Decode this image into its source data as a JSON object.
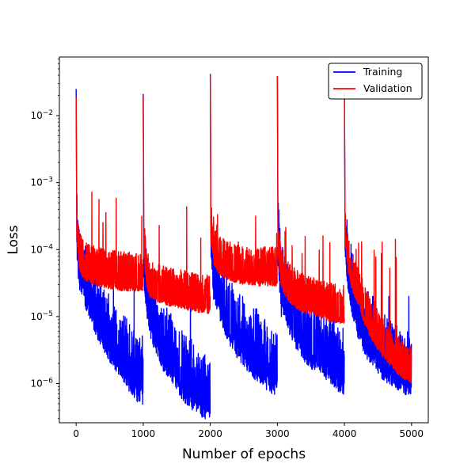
{
  "chart_data": {
    "type": "line",
    "title": "",
    "xlabel": "Number of epochs",
    "ylabel": "Loss",
    "xlim": [
      -250,
      5250
    ],
    "ylim": [
      2.6e-07,
      0.075
    ],
    "yscale": "log",
    "grid": false,
    "legend_position": "top-right",
    "x_ticks": [
      0,
      1000,
      2000,
      3000,
      4000,
      5000
    ],
    "x_tick_labels": [
      "0",
      "1000",
      "2000",
      "3000",
      "4000",
      "5000"
    ],
    "y_ticks": [
      1e-06,
      1e-05,
      0.0001,
      0.001,
      0.01
    ],
    "y_tick_labels": [
      {
        "base": "10",
        "exp": "−6"
      },
      {
        "base": "10",
        "exp": "−5"
      },
      {
        "base": "10",
        "exp": "−4"
      },
      {
        "base": "10",
        "exp": "−3"
      },
      {
        "base": "10",
        "exp": "−2"
      }
    ],
    "series": [
      {
        "name": "Training",
        "color": "#0000ff",
        "segments": [
          {
            "x": [
              0,
              10,
              30,
              60,
              100,
              150,
              200,
              300,
              400,
              500,
              600,
              700,
              800,
              900,
              999
            ],
            "y": [
              0.025,
              0.00013,
              6e-05,
              4e-05,
              3e-05,
              2e-05,
              1.5e-05,
              8e-06,
              5e-06,
              3.5e-06,
              2.5e-06,
              1.8e-06,
              1.2e-06,
              9e-07,
              8e-07
            ],
            "spike": 2.5e-05
          },
          {
            "x": [
              1000,
              1010,
              1050,
              1100,
              1200,
              1300,
              1400,
              1500,
              1600,
              1700,
              1800,
              1900,
              1999
            ],
            "y": [
              0.021,
              4e-05,
              1.5e-05,
              8e-06,
              4e-06,
              2.5e-06,
              1.8e-06,
              1.3e-06,
              9e-07,
              7e-07,
              6e-07,
              5e-07,
              4.6e-07
            ],
            "spike": 2.5e-05
          },
          {
            "x": [
              2000,
              2010,
              2050,
              2100,
              2200,
              2300,
              2400,
              2500,
              2600,
              2700,
              2800,
              2900,
              2999
            ],
            "y": [
              0.042,
              0.00012,
              3e-05,
              2e-05,
              1e-05,
              6e-06,
              4e-06,
              3e-06,
              2.2e-06,
              1.7e-06,
              1.4e-06,
              1.2e-06,
              1.1e-06
            ],
            "spike": 1.3e-05
          },
          {
            "x": [
              3000,
              3010,
              3050,
              3100,
              3200,
              3300,
              3400,
              3500,
              3600,
              3700,
              3800,
              3900,
              3999
            ],
            "y": [
              0.039,
              8e-05,
              2.5e-05,
              1.6e-05,
              8e-06,
              5e-06,
              3.5e-06,
              2.8e-06,
              2.3e-06,
              2e-06,
              1.6e-06,
              1.3e-06,
              1e-06
            ],
            "spike": 1e-05
          },
          {
            "x": [
              4000,
              4010,
              4050,
              4100,
              4200,
              4300,
              4400,
              4500,
              4600,
              4700,
              4800,
              4900,
              4999
            ],
            "y": [
              0.022,
              0.00012,
              4e-05,
              2e-05,
              8e-06,
              4.5e-06,
              3e-06,
              2.2e-06,
              1.8e-06,
              1.5e-06,
              1.3e-06,
              1.15e-06,
              1.1e-06
            ],
            "spike": 2e-05
          }
        ]
      },
      {
        "name": "Validation",
        "color": "#ff0000",
        "segments": [
          {
            "x": [
              0,
              10,
              30,
              60,
              100,
              200,
              300,
              400,
              500,
              600,
              700,
              800,
              900,
              999
            ],
            "y": [
              0.019,
              0.00018,
              9e-05,
              6e-05,
              5e-05,
              4.2e-05,
              3.8e-05,
              3.6e-05,
              3.4e-05,
              3.3e-05,
              3.2e-05,
              3.2e-05,
              3.2e-05,
              3.2e-05
            ],
            "spike": 0.0008
          },
          {
            "x": [
              1000,
              1010,
              1050,
              1100,
              1200,
              1300,
              1400,
              1500,
              1600,
              1700,
              1800,
              1900,
              1999
            ],
            "y": [
              0.02,
              0.0001,
              3.5e-05,
              2.6e-05,
              2.2e-05,
              2e-05,
              1.9e-05,
              1.8e-05,
              1.7e-05,
              1.6e-05,
              1.55e-05,
              1.5e-05,
              1.45e-05
            ],
            "spike": 0.00048
          },
          {
            "x": [
              2000,
              2010,
              2050,
              2100,
              2200,
              2300,
              2400,
              2500,
              2600,
              2700,
              2800,
              2900,
              2999
            ],
            "y": [
              0.042,
              0.00015,
              8e-05,
              6e-05,
              5e-05,
              4.5e-05,
              4.2e-05,
              4e-05,
              3.9e-05,
              3.8e-05,
              3.8e-05,
              3.8e-05,
              3.8e-05
            ],
            "spike": 0.00035
          },
          {
            "x": [
              3000,
              3010,
              3050,
              3100,
              3200,
              3300,
              3400,
              3500,
              3600,
              3700,
              3800,
              3900,
              3999
            ],
            "y": [
              0.039,
              0.0001,
              4e-05,
              2.8e-05,
              2e-05,
              1.7e-05,
              1.5e-05,
              1.4e-05,
              1.3e-05,
              1.2e-05,
              1.1e-05,
              1.05e-05,
              1e-05
            ],
            "spike": 0.00023
          },
          {
            "x": [
              4000,
              4010,
              4050,
              4100,
              4200,
              4300,
              4400,
              4500,
              4600,
              4700,
              4800,
              4900,
              4999
            ],
            "y": [
              0.021,
              0.0002,
              6e-05,
              3.5e-05,
              2e-05,
              1e-05,
              6e-06,
              4e-06,
              3e-06,
              2.3e-06,
              1.8e-06,
              1.5e-06,
              1.3e-06
            ],
            "spike": 0.00015
          }
        ]
      }
    ]
  }
}
